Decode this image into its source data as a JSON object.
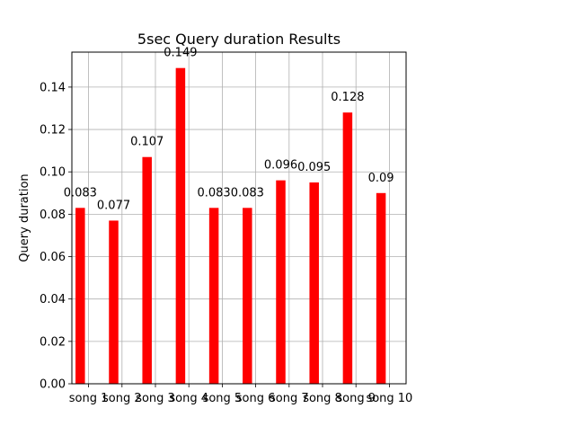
{
  "chart_data": {
    "type": "bar",
    "title": "5sec Query duration Results",
    "xlabel": "",
    "ylabel": "Query duration",
    "categories": [
      "song 1",
      "song 2",
      "song 3",
      "song 4",
      "song 5",
      "song 6",
      "song 7",
      "song 8",
      "song 9",
      "song 10"
    ],
    "values": [
      0.083,
      0.077,
      0.107,
      0.149,
      0.083,
      0.083,
      0.096,
      0.095,
      0.128,
      0.09
    ],
    "data_labels": [
      "0.083",
      "0.077",
      "0.107",
      "0.149",
      "0.083",
      "0.083",
      "0.096",
      "0.095",
      "0.128",
      "0.09"
    ],
    "ylim": [
      0,
      0.1565
    ],
    "yticks": [
      0.0,
      0.02,
      0.04,
      0.06,
      0.08,
      0.1,
      0.12,
      0.14
    ],
    "ytick_labels": [
      "0.00",
      "0.02",
      "0.04",
      "0.06",
      "0.08",
      "0.10",
      "0.12",
      "0.14"
    ],
    "grid": true,
    "legend": "none",
    "bar_color": "#ff0000"
  }
}
